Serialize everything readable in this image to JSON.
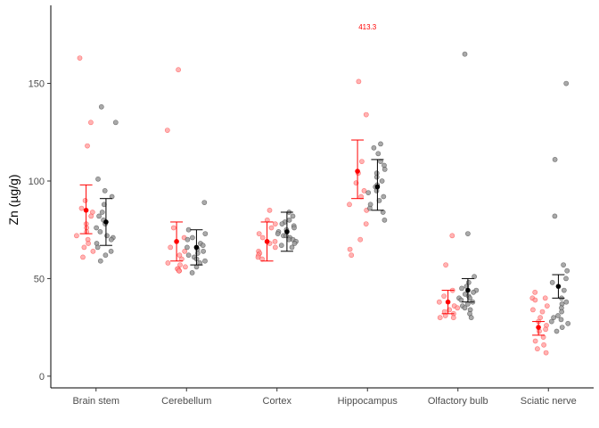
{
  "chart_data": {
    "type": "scatter",
    "ylabel": "Zn (µg/g)",
    "xlabel": "",
    "ylim": [
      -6,
      190
    ],
    "yticks": [
      0,
      50,
      100,
      150
    ],
    "grid": false,
    "categories": [
      "Brain stem",
      "Cerebellum",
      "Cortex",
      "Hippocampus",
      "Olfactory bulb",
      "Sciatic nerve"
    ],
    "colors": {
      "group_a": "#ff0000",
      "group_a_points": "#ff9a9a",
      "group_b": "#000000",
      "group_b_points": "#9a9a9a"
    },
    "series": [
      {
        "color": "#ff0000",
        "mean": [
          85,
          69,
          69,
          105,
          38,
          25
        ],
        "ci_low": [
          73,
          59,
          59,
          91,
          32,
          21
        ],
        "ci_high": [
          98,
          79,
          79,
          121,
          44,
          28
        ],
        "points": [
          [
            163,
            130,
            118,
            90,
            86,
            84,
            82,
            78,
            76,
            74,
            72,
            70,
            68,
            66,
            64,
            61
          ],
          [
            157,
            126,
            76,
            71,
            66,
            64,
            62,
            60,
            58,
            57,
            56,
            55,
            55,
            54,
            54
          ],
          [
            85,
            80,
            78,
            76,
            73,
            71,
            69,
            68,
            66,
            64,
            63,
            62,
            61,
            60
          ],
          [
            151,
            134,
            110,
            104,
            99,
            95,
            92,
            88,
            85,
            78,
            70,
            65,
            62
          ],
          [
            72,
            57,
            44,
            41,
            38,
            36,
            35,
            34,
            33,
            32,
            31,
            30,
            30
          ],
          [
            43,
            40,
            40,
            39,
            36,
            34,
            33,
            30,
            28,
            26,
            24,
            23,
            20,
            18,
            16,
            14,
            12
          ]
        ]
      },
      {
        "color": "#000000",
        "mean": [
          79,
          66,
          74,
          97,
          44,
          46
        ],
        "ci_low": [
          67,
          57,
          64,
          85,
          38,
          40
        ],
        "ci_high": [
          91,
          75,
          84,
          111,
          50,
          52
        ],
        "points": [
          [
            138,
            130,
            101,
            95,
            92,
            88,
            84,
            82,
            80,
            78,
            76,
            74,
            72,
            71,
            70,
            68,
            66,
            64,
            62,
            59
          ],
          [
            89,
            75,
            73,
            71,
            70,
            68,
            67,
            66,
            65,
            64,
            63,
            62,
            61,
            60,
            59,
            58,
            56,
            53
          ],
          [
            84,
            82,
            80,
            79,
            78,
            77,
            76,
            75,
            74,
            73,
            72,
            72,
            71,
            70,
            70,
            69,
            68,
            67,
            66
          ],
          [
            119,
            117,
            114,
            110,
            108,
            106,
            104,
            102,
            100,
            98,
            97,
            95,
            94,
            92,
            90,
            88,
            86,
            84,
            80
          ],
          [
            165,
            73,
            51,
            48,
            46,
            45,
            44,
            43,
            42,
            41,
            40,
            40,
            39,
            38,
            37,
            36,
            35,
            34,
            32,
            30
          ],
          [
            150,
            111,
            82,
            57,
            54,
            50,
            48,
            44,
            40,
            38,
            37,
            35,
            33,
            31,
            30,
            29,
            28,
            27,
            25,
            23
          ]
        ]
      }
    ],
    "annotations": [
      {
        "text": "413.3",
        "category": "Hippocampus",
        "y": 179,
        "color": "#ff0000"
      }
    ]
  }
}
